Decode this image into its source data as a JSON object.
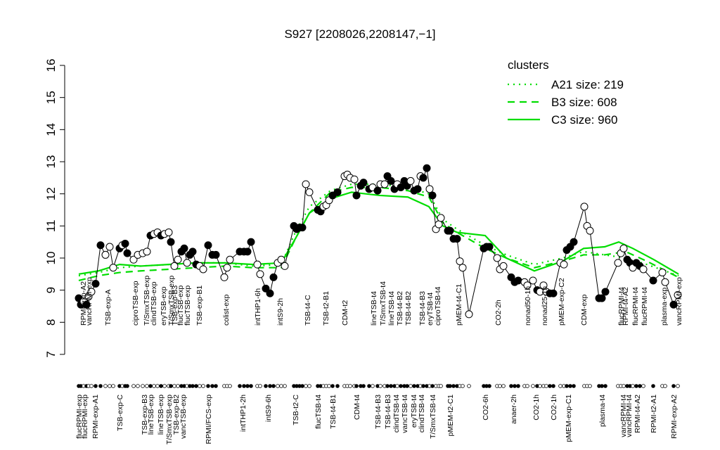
{
  "chart_data": {
    "type": "line",
    "title": "S927 [2208026,2208147,−1]",
    "ylim": [
      7,
      16
    ],
    "yticks": [
      7,
      8,
      9,
      10,
      11,
      12,
      13,
      14,
      15,
      16
    ],
    "xlim": [
      105,
      970
    ],
    "point_color": "#000000",
    "legend_title": "clusters",
    "legend_position": "top-right",
    "legend_color": "#00dd00",
    "x": [
      112,
      115,
      119,
      123,
      126,
      130,
      136,
      143,
      150,
      156,
      161,
      170,
      174,
      178,
      181,
      190,
      196,
      203,
      209,
      214,
      219,
      224,
      229,
      234,
      240,
      243,
      248,
      253,
      258,
      262,
      266,
      270,
      274,
      279,
      284,
      289,
      296,
      302,
      307,
      319,
      323,
      327,
      341,
      347,
      352,
      357,
      366,
      370,
      378,
      384,
      389,
      395,
      400,
      405,
      418,
      422,
      426,
      430,
      435,
      440,
      452,
      456,
      460,
      464,
      468,
      473,
      480,
      490,
      494,
      498,
      504,
      507,
      513,
      517,
      525,
      530,
      537,
      541,
      547,
      551,
      556,
      561,
      565,
      570,
      575,
      579,
      584,
      589,
      594,
      598,
      602,
      607,
      611,
      615,
      620,
      624,
      627,
      637,
      640,
      645,
      650,
      654,
      658,
      667,
      688,
      692,
      696,
      707,
      711,
      716,
      727,
      732,
      737,
      746,
      750,
      758,
      764,
      768,
      773,
      777,
      782,
      787,
      797,
      802,
      806,
      811,
      816,
      831,
      835,
      839,
      852,
      856,
      861,
      879,
      883,
      887,
      892,
      896,
      900,
      905,
      910,
      915,
      929,
      942,
      946,
      958,
      964
    ],
    "values": [
      8.75,
      8.55,
      8.65,
      8.55,
      8.8,
      8.95,
      9.2,
      10.4,
      10.1,
      10.35,
      9.7,
      10.3,
      10.4,
      10.45,
      10.15,
      9.95,
      10.1,
      10.15,
      10.2,
      10.7,
      10.75,
      10.8,
      10.7,
      10.75,
      10.8,
      10.5,
      9.75,
      9.95,
      10.2,
      10.3,
      9.85,
      10.1,
      10.2,
      9.8,
      9.75,
      9.65,
      10.4,
      10.1,
      10.1,
      9.4,
      9.7,
      9.95,
      10.2,
      10.2,
      10.2,
      10.5,
      9.8,
      9.5,
      9.05,
      8.9,
      9.4,
      9.85,
      9.95,
      9.75,
      11.0,
      10.9,
      10.95,
      10.95,
      12.3,
      12.05,
      11.5,
      11.45,
      11.6,
      11.65,
      11.8,
      11.95,
      12.05,
      12.55,
      12.6,
      12.5,
      12.45,
      11.95,
      12.25,
      12.35,
      12.15,
      12.2,
      12.1,
      12.3,
      12.3,
      12.55,
      12.4,
      12.15,
      12.3,
      12.2,
      12.4,
      12.25,
      12.4,
      12.1,
      12.15,
      12.55,
      12.5,
      12.8,
      12.15,
      11.95,
      10.9,
      11.05,
      11.25,
      10.85,
      10.85,
      10.6,
      10.6,
      9.9,
      9.7,
      8.25,
      10.3,
      10.35,
      10.35,
      10.0,
      9.65,
      9.75,
      9.4,
      9.25,
      9.3,
      9.25,
      9.15,
      9.3,
      9.0,
      8.95,
      9.15,
      8.95,
      8.9,
      8.9,
      9.85,
      9.8,
      10.25,
      10.35,
      10.5,
      11.6,
      11.0,
      10.85,
      8.75,
      8.75,
      8.95,
      9.85,
      10.15,
      10.3,
      9.95,
      9.85,
      9.7,
      9.85,
      9.75,
      9.65,
      9.3,
      9.55,
      9.25,
      8.55,
      8.85
    ],
    "filled": [
      true,
      true,
      false,
      true,
      false,
      false,
      true,
      true,
      false,
      false,
      false,
      true,
      false,
      true,
      true,
      false,
      false,
      false,
      false,
      true,
      false,
      false,
      true,
      false,
      false,
      true,
      false,
      false,
      true,
      true,
      false,
      true,
      true,
      true,
      false,
      false,
      true,
      true,
      true,
      false,
      false,
      false,
      true,
      true,
      true,
      true,
      false,
      false,
      true,
      true,
      true,
      false,
      false,
      false,
      true,
      true,
      true,
      true,
      false,
      false,
      true,
      true,
      false,
      false,
      false,
      true,
      true,
      false,
      false,
      false,
      false,
      true,
      true,
      true,
      true,
      false,
      true,
      false,
      false,
      true,
      true,
      true,
      false,
      true,
      true,
      true,
      false,
      true,
      true,
      false,
      true,
      true,
      false,
      true,
      false,
      false,
      false,
      true,
      true,
      true,
      true,
      false,
      false,
      false,
      true,
      true,
      true,
      false,
      false,
      false,
      true,
      true,
      true,
      false,
      false,
      false,
      true,
      false,
      false,
      false,
      true,
      true,
      false,
      false,
      true,
      true,
      true,
      false,
      false,
      false,
      true,
      true,
      true,
      false,
      false,
      false,
      true,
      true,
      false,
      true,
      true,
      false,
      true,
      false,
      false,
      true,
      false
    ],
    "series": [
      {
        "name": "A21 size: 219",
        "style": "dotted",
        "color": "#00dd00",
        "x": [
          112,
          140,
          170,
          200,
          240,
          280,
          320,
          360,
          400,
          420,
          440,
          470,
          500,
          540,
          580,
          610,
          630,
          650,
          690,
          720,
          760,
          800,
          830,
          860,
          890,
          920,
          965
        ],
        "values": [
          9.45,
          9.55,
          9.7,
          9.75,
          9.8,
          9.85,
          9.85,
          9.75,
          9.8,
          10.8,
          11.6,
          12.1,
          12.3,
          12.3,
          12.2,
          12.0,
          11.2,
          10.9,
          10.4,
          10.1,
          9.8,
          10.0,
          10.2,
          10.1,
          10.0,
          9.8,
          9.45
        ]
      },
      {
        "name": "B3 size: 608",
        "style": "dashed",
        "color": "#00dd00",
        "x": [
          112,
          140,
          170,
          200,
          240,
          280,
          320,
          360,
          400,
          420,
          440,
          470,
          500,
          540,
          580,
          610,
          630,
          650,
          690,
          720,
          760,
          800,
          830,
          860,
          890,
          920,
          965
        ],
        "values": [
          9.3,
          9.45,
          9.55,
          9.6,
          9.65,
          9.7,
          9.75,
          9.7,
          9.7,
          10.6,
          11.4,
          12.05,
          12.2,
          12.2,
          12.1,
          11.9,
          11.1,
          10.8,
          10.3,
          10.0,
          9.7,
          9.9,
          10.1,
          10.1,
          10.2,
          9.9,
          9.4
        ]
      },
      {
        "name": "C3 size: 960",
        "style": "solid",
        "color": "#00dd00",
        "x": [
          112,
          140,
          170,
          200,
          240,
          280,
          320,
          360,
          400,
          420,
          440,
          470,
          500,
          540,
          580,
          610,
          630,
          650,
          690,
          720,
          760,
          800,
          830,
          860,
          880,
          900,
          930,
          965
        ],
        "values": [
          9.5,
          9.6,
          9.8,
          9.75,
          9.8,
          9.85,
          9.85,
          9.8,
          9.85,
          10.6,
          11.4,
          11.85,
          12.05,
          11.95,
          11.9,
          11.6,
          11.0,
          10.8,
          10.7,
          10.0,
          9.6,
          9.9,
          10.3,
          10.35,
          10.5,
          10.3,
          9.95,
          9.5
        ]
      }
    ],
    "labels_top": [
      {
        "x": 118,
        "label": "RPMI-exp-A2"
      },
      {
        "x": 126,
        "label": "vancRPMI-exp"
      },
      {
        "x": 153,
        "label": "TSB-exp-A"
      },
      {
        "x": 192,
        "label": "ciproTSB-exp"
      },
      {
        "x": 208,
        "label": "T/SmxTSB-exp"
      },
      {
        "x": 218,
        "label": "clindTSB-exp"
      },
      {
        "x": 232,
        "label": "eryTSB-exp"
      },
      {
        "x": 243,
        "label": "T/SmxTSB-exp"
      },
      {
        "x": 248,
        "label": "TSB-exp-B3"
      },
      {
        "x": 256,
        "label": "flucTSB-exp"
      },
      {
        "x": 266,
        "label": "flucTSB-exp"
      },
      {
        "x": 283,
        "label": "TSB-exp-B1"
      },
      {
        "x": 321,
        "label": "colist-exp"
      },
      {
        "x": 366,
        "label": "intTHP1-6h"
      },
      {
        "x": 398,
        "label": "intS9-2h"
      },
      {
        "x": 437,
        "label": "TSB-t4-C"
      },
      {
        "x": 463,
        "label": "TSB-t2-B1"
      },
      {
        "x": 490,
        "label": "CDM-t2"
      },
      {
        "x": 531,
        "label": "lineTSB-t4"
      },
      {
        "x": 544,
        "label": "T/SmxTSB-t4"
      },
      {
        "x": 556,
        "label": "lineTSB-t4"
      },
      {
        "x": 568,
        "label": "TSB-t4-B2"
      },
      {
        "x": 580,
        "label": "TSB-t4-B2"
      },
      {
        "x": 600,
        "label": "TSB-t4-B3"
      },
      {
        "x": 611,
        "label": "eryTSB-t4"
      },
      {
        "x": 622,
        "label": "ciproTSB-t4"
      },
      {
        "x": 652,
        "label": "pMEM-t4-C1"
      },
      {
        "x": 708,
        "label": "CO2-2h"
      },
      {
        "x": 750,
        "label": "nonad50-1h"
      },
      {
        "x": 774,
        "label": "nonad25-1h"
      },
      {
        "x": 798,
        "label": "pMEM-exp-C2"
      },
      {
        "x": 830,
        "label": "CDM-exp"
      },
      {
        "x": 883,
        "label": "flucRPMI-t4"
      },
      {
        "x": 889,
        "label": "RPMI-t4-A2"
      },
      {
        "x": 903,
        "label": "flucRPMI-t4"
      },
      {
        "x": 916,
        "label": "flucRPMI-t4"
      },
      {
        "x": 944,
        "label": "plasma-exp"
      },
      {
        "x": 965,
        "label": "vancRPMI-exp"
      }
    ],
    "labels_bottom": [
      {
        "x": 112,
        "label": "flucRPMI-exp"
      },
      {
        "x": 120,
        "label": "flucRPMI-exp"
      },
      {
        "x": 135,
        "label": "RPMI-exp-A1"
      },
      {
        "x": 170,
        "label": "TSB-exp-C"
      },
      {
        "x": 205,
        "label": "TSB-exp-B3"
      },
      {
        "x": 214,
        "label": "lineTSB-exp"
      },
      {
        "x": 228,
        "label": "lineTSB-exp"
      },
      {
        "x": 240,
        "label": "T/SmxTSB-exp"
      },
      {
        "x": 250,
        "label": "TSB-exp-B2"
      },
      {
        "x": 260,
        "label": "vancTSB-exp"
      },
      {
        "x": 296,
        "label": "RPMI/FCS-exp"
      },
      {
        "x": 345,
        "label": "intTHP1-2h"
      },
      {
        "x": 381,
        "label": "intS9-6h"
      },
      {
        "x": 420,
        "label": "TSB-t2-C"
      },
      {
        "x": 452,
        "label": "flucTSB-t4"
      },
      {
        "x": 473,
        "label": "TSB-t4-B1"
      },
      {
        "x": 507,
        "label": "CDM-t4"
      },
      {
        "x": 537,
        "label": "TSB-t4-B3"
      },
      {
        "x": 551,
        "label": "TSB-t4-B3"
      },
      {
        "x": 563,
        "label": "clindTSB-t4"
      },
      {
        "x": 575,
        "label": "vancTSB-t4"
      },
      {
        "x": 588,
        "label": "eryTSB-t4"
      },
      {
        "x": 599,
        "label": "clindTSB-t4"
      },
      {
        "x": 615,
        "label": "T/SmxTSB-t4"
      },
      {
        "x": 640,
        "label": "pMEM-t2-C1"
      },
      {
        "x": 690,
        "label": "CO2-6h"
      },
      {
        "x": 730,
        "label": "anaer-2h"
      },
      {
        "x": 762,
        "label": "CO2-1h"
      },
      {
        "x": 787,
        "label": "CO2-1h"
      },
      {
        "x": 808,
        "label": "pMEM-exp-C1"
      },
      {
        "x": 856,
        "label": "plasma-t4"
      },
      {
        "x": 886,
        "label": "vancRPMI-t4"
      },
      {
        "x": 894,
        "label": "vancRPMI-t4"
      },
      {
        "x": 906,
        "label": "RPMI-t4-A2"
      },
      {
        "x": 929,
        "label": "RPMI-t2-A1"
      },
      {
        "x": 958,
        "label": "RPMI-exp-A2"
      }
    ]
  }
}
